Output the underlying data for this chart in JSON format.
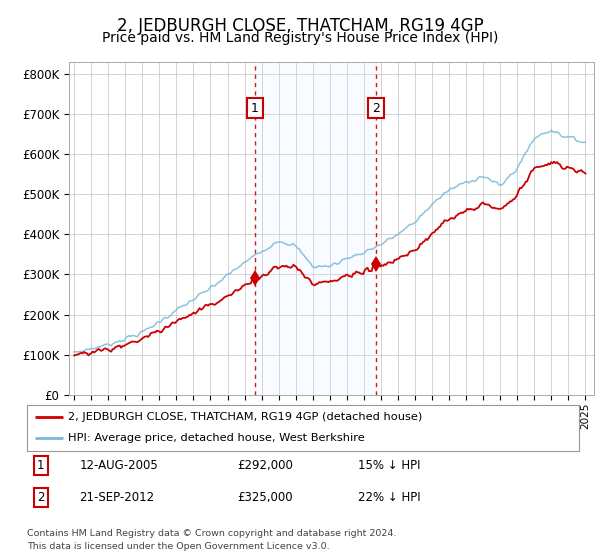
{
  "title": "2, JEDBURGH CLOSE, THATCHAM, RG19 4GP",
  "subtitle": "Price paid vs. HM Land Registry's House Price Index (HPI)",
  "title_fontsize": 12,
  "subtitle_fontsize": 10,
  "ylabel_ticks": [
    "£0",
    "£100K",
    "£200K",
    "£300K",
    "£400K",
    "£500K",
    "£600K",
    "£700K",
    "£800K"
  ],
  "ytick_values": [
    0,
    100000,
    200000,
    300000,
    400000,
    500000,
    600000,
    700000,
    800000
  ],
  "ylim": [
    0,
    830000
  ],
  "xlim_start": 1994.7,
  "xlim_end": 2025.5,
  "background_color": "#ffffff",
  "plot_bg_color": "#ffffff",
  "grid_color": "#cccccc",
  "hpi_color": "#7ab8d9",
  "price_color": "#cc0000",
  "sale1_date": 2005.61,
  "sale1_price": 292000,
  "sale2_date": 2012.72,
  "sale2_price": 325000,
  "shade_color": "#ddeeff",
  "dashed_line_color": "#cc0000",
  "legend_line1": "2, JEDBURGH CLOSE, THATCHAM, RG19 4GP (detached house)",
  "legend_line2": "HPI: Average price, detached house, West Berkshire",
  "footer1": "Contains HM Land Registry data © Crown copyright and database right 2024.",
  "footer2": "This data is licensed under the Open Government Licence v3.0.",
  "table_row1_num": "1",
  "table_row1_date": "12-AUG-2005",
  "table_row1_price": "£292,000",
  "table_row1_hpi": "15% ↓ HPI",
  "table_row2_num": "2",
  "table_row2_date": "21-SEP-2012",
  "table_row2_price": "£325,000",
  "table_row2_hpi": "22% ↓ HPI"
}
